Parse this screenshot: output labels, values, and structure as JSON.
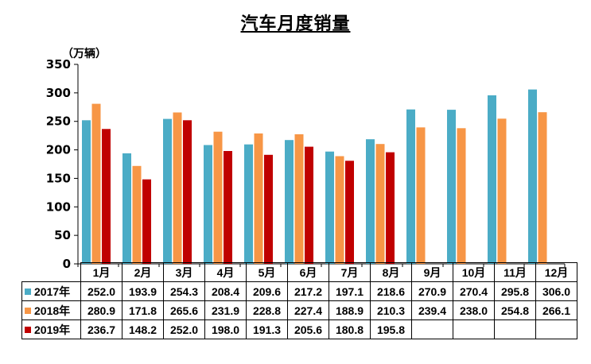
{
  "chart_data": {
    "type": "bar",
    "title": "汽车月度销量",
    "unit_label": "（万辆）",
    "categories": [
      "1月",
      "2月",
      "3月",
      "4月",
      "5月",
      "6月",
      "7月",
      "8月",
      "9月",
      "10月",
      "11月",
      "12月"
    ],
    "ylim": [
      0,
      350
    ],
    "yticks": [
      0,
      50,
      100,
      150,
      200,
      250,
      300,
      350
    ],
    "grid": false,
    "series": [
      {
        "name": "2017年",
        "color": "#4BACC6",
        "values": [
          252.0,
          193.9,
          254.3,
          208.4,
          209.6,
          217.2,
          197.1,
          218.6,
          270.9,
          270.4,
          295.8,
          306.0
        ],
        "labels": [
          "252.0",
          "193.9",
          "254.3",
          "208.4",
          "209.6",
          "217.2",
          "197.1",
          "218.6",
          "270.9",
          "270.4",
          "295.8",
          "306.0"
        ]
      },
      {
        "name": "2018年",
        "color": "#F79646",
        "values": [
          280.9,
          171.8,
          265.6,
          231.9,
          228.8,
          227.4,
          188.9,
          210.3,
          239.4,
          238.0,
          254.8,
          266.1
        ],
        "labels": [
          "280.9",
          "171.8",
          "265.6",
          "231.9",
          "228.8",
          "227.4",
          "188.9",
          "210.3",
          "239.4",
          "238.0",
          "254.8",
          "266.1"
        ]
      },
      {
        "name": "2019年",
        "color": "#C00000",
        "values": [
          236.7,
          148.2,
          252.0,
          198.0,
          191.3,
          205.6,
          180.8,
          195.8,
          null,
          null,
          null,
          null
        ],
        "labels": [
          "236.7",
          "148.2",
          "252.0",
          "198.0",
          "191.3",
          "205.6",
          "180.8",
          "195.8",
          "",
          "",
          "",
          ""
        ]
      }
    ]
  }
}
